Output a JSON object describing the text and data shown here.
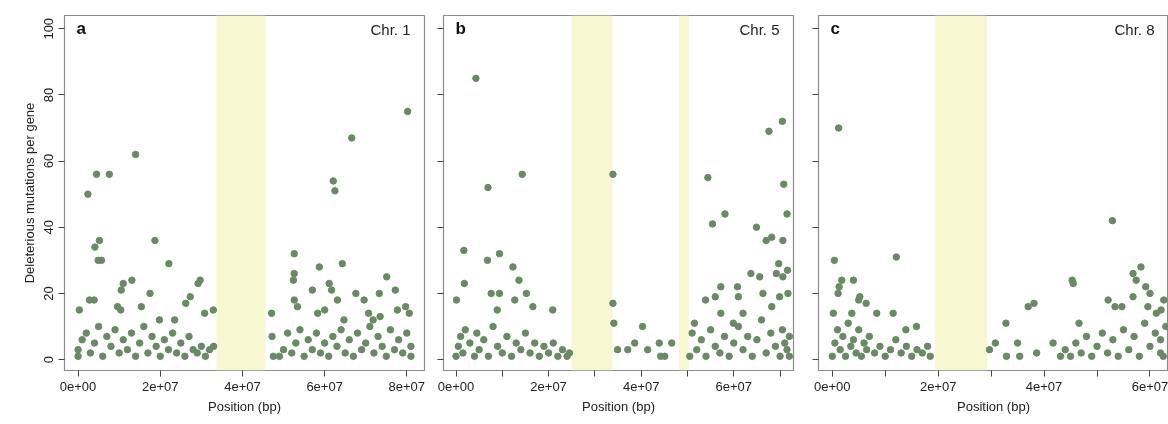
{
  "chart_data": [
    {
      "type": "scatter",
      "title": "a",
      "annotations": [
        "Chr. 1"
      ],
      "xlabel": "Position (bp)",
      "ylabel": "Deleterious mutations per gene",
      "xlim": [
        -3300000.0,
        84300000.0
      ],
      "ylim": [
        -3.3,
        104
      ],
      "xticks": [
        {
          "value": 0,
          "label": "0e+00"
        },
        {
          "value": 20000000.0,
          "label": "2e+07"
        },
        {
          "value": 40000000.0,
          "label": "4e+07"
        },
        {
          "value": 60000000.0,
          "label": "6e+07"
        },
        {
          "value": 80000000.0,
          "label": "8e+07"
        }
      ],
      "yticks": [
        0,
        20,
        40,
        60,
        80,
        100
      ],
      "grid": false,
      "marker": "circle",
      "bands": [
        {
          "axis": "x",
          "from": 33700000.0,
          "to": 45600000.0,
          "color": "#f7f7d2"
        }
      ],
      "series": [
        {
          "color": "#6a8a66",
          "x": [
            2400000.0,
            4500000.0,
            7600000.0,
            14000000.0,
            4100000.0,
            5200000.0,
            4900000.0,
            5700000.0,
            18700000.0,
            22100000.0,
            13100000.0,
            11000000.0,
            10500000.0,
            29700000.0,
            29200000.0,
            17500000.0,
            27300000.0,
            2800000.0,
            3900000.0,
            26200000.0,
            30800000.0,
            32900000.0,
            300000.0,
            9600000.0,
            10400000.0,
            15400000.0,
            19800000.0,
            23500000.0,
            80200000.0,
            66600000.0,
            62100000.0,
            62500000.0,
            52600000.0,
            52600000.0,
            52400000.0,
            58700000.0,
            64300000.0,
            61100000.0,
            75100000.0,
            61700000.0,
            57000000.0,
            67600000.0,
            73300000.0,
            77200000.0,
            69600000.0,
            63100000.0,
            52600000.0,
            79700000.0,
            80600000.0,
            47100000.0,
            70700000.0,
            58300000.0,
            53400000.0,
            60000000.0,
            77700000.0,
            71800000.0,
            73500000.0,
            64700000.0,
            0,
            0,
            1000000.0,
            2000000.0,
            3000000.0,
            4000000.0,
            5000000.0,
            6000000.0,
            7000000.0,
            8000000.0,
            9000000.0,
            10000000.0,
            11000000.0,
            12000000.0,
            13000000.0,
            14000000.0,
            15000000.0,
            16000000.0,
            17000000.0,
            18000000.0,
            19000000.0,
            20000000.0,
            21000000.0,
            22000000.0,
            23000000.0,
            24000000.0,
            25000000.0,
            26000000.0,
            27000000.0,
            28000000.0,
            29000000.0,
            30000000.0,
            31000000.0,
            32000000.0,
            33000000.0,
            47200000.0,
            47500000.0,
            49000000.0,
            50000000.0,
            51000000.0,
            52000000.0,
            53000000.0,
            54000000.0,
            55000000.0,
            56000000.0,
            57000000.0,
            58000000.0,
            59000000.0,
            60000000.0,
            61000000.0,
            62000000.0,
            63000000.0,
            64000000.0,
            65000000.0,
            66000000.0,
            67000000.0,
            68000000.0,
            69000000.0,
            70000000.0,
            71000000.0,
            72000000.0,
            73000000.0,
            74000000.0,
            75000000.0,
            76000000.0,
            77000000.0,
            78000000.0,
            79000000.0,
            80000000.0,
            81000000.0,
            81000000.0
          ],
          "values": [
            50,
            56,
            56,
            62,
            34,
            36,
            30,
            30,
            36,
            29,
            24,
            23,
            21,
            24,
            23,
            20,
            19,
            18,
            18,
            17,
            14,
            15,
            15,
            16,
            15,
            16,
            12,
            12,
            75,
            67,
            54,
            51,
            32,
            26,
            24,
            28,
            29,
            23,
            25,
            21,
            21,
            20,
            20,
            21,
            18,
            18,
            18,
            16,
            14,
            14,
            14,
            14,
            16,
            15,
            15,
            12,
            13,
            12,
            1,
            3,
            6,
            8,
            2,
            5,
            10,
            1,
            7,
            4,
            9,
            2,
            6,
            3,
            8,
            1,
            5,
            10,
            2,
            7,
            4,
            1,
            6,
            3,
            8,
            2,
            5,
            1,
            7,
            3,
            2,
            4,
            1,
            3,
            4,
            7,
            1,
            1,
            3,
            8,
            2,
            5,
            9,
            1,
            6,
            3,
            8,
            2,
            5,
            1,
            7,
            4,
            9,
            2,
            6,
            1,
            8,
            3,
            5,
            10,
            2,
            7,
            4,
            1,
            9,
            3,
            6,
            2,
            8,
            1,
            4
          ]
        }
      ]
    },
    {
      "type": "scatter",
      "title": "b",
      "annotations": [
        "Chr. 5"
      ],
      "xlabel": "Position (bp)",
      "xlim": [
        -2700000.0,
        72900000.0
      ],
      "ylim": [
        -3.3,
        104
      ],
      "tick_labels": "x",
      "xticks": [
        {
          "value": 0,
          "label": "0e+00"
        },
        {
          "value": 10000000.0,
          "label": null
        },
        {
          "value": 20000000.0,
          "label": "2e+07"
        },
        {
          "value": 30000000.0,
          "label": null
        },
        {
          "value": 40000000.0,
          "label": "4e+07"
        },
        {
          "value": 50000000.0,
          "label": null
        },
        {
          "value": 60000000.0,
          "label": "6e+07"
        },
        {
          "value": 70000000.0,
          "label": null
        }
      ],
      "yticks": [
        0,
        20,
        40,
        60,
        80,
        100
      ],
      "grid": false,
      "marker": "circle",
      "bands": [
        {
          "axis": "x",
          "from": 25000000.0,
          "to": 33800000.0,
          "color": "#f7f7d2"
        },
        {
          "axis": "x",
          "from": 48100000.0,
          "to": 50300000.0,
          "color": "#f7f7d2"
        }
      ],
      "series": [
        {
          "color": "#6a8a66",
          "x": [
            4300000.0,
            6900000.0,
            14300000.0,
            33900000.0,
            1700000.0,
            6800000.0,
            9400000.0,
            12300000.0,
            13600000.0,
            1800000.0,
            7600000.0,
            9400000.0,
            15200000.0,
            100000.0,
            12700000.0,
            33900000.0,
            34100000.0,
            40300000.0,
            20900000.0,
            16600000.0,
            8900000.0,
            70500000.0,
            67600000.0,
            70800000.0,
            54400000.0,
            71500000.0,
            58100000.0,
            55400000.0,
            64900000.0,
            68200000.0,
            70600000.0,
            67000000.0,
            69700000.0,
            71600000.0,
            63700000.0,
            69200000.0,
            70600000.0,
            65600000.0,
            57200000.0,
            60800000.0,
            56000000.0,
            61000000.0,
            53900000.0,
            66300000.0,
            71700000.0,
            69900000.0,
            68200000.0,
            51500000.0,
            59900000.0,
            62000000.0,
            57200000.0,
            34900000.0,
            38600000.0,
            41400000.0,
            43900000.0,
            46600000.0,
            44200000.0,
            45100000.0,
            37100000.0,
            0,
            500000.0,
            1000000.0,
            1500000.0,
            2000000.0,
            3000000.0,
            4000000.0,
            4500000.0,
            5000000.0,
            6000000.0,
            7000000.0,
            8000000.0,
            9000000.0,
            10000000.0,
            11000000.0,
            12000000.0,
            13000000.0,
            14000000.0,
            15000000.0,
            16000000.0,
            17000000.0,
            18000000.0,
            19000000.0,
            20000000.0,
            21000000.0,
            22000000.0,
            23000000.0,
            24000000.0,
            24500000.0,
            50500000.0,
            51000000.0,
            52000000.0,
            53000000.0,
            54000000.0,
            55000000.0,
            56000000.0,
            57000000.0,
            58000000.0,
            59000000.0,
            60000000.0,
            61000000.0,
            62000000.0,
            63000000.0,
            64000000.0,
            65000000.0,
            66000000.0,
            67000000.0,
            68000000.0,
            69000000.0,
            70000000.0,
            70500000.0,
            71000000.0,
            71500000.0,
            72000000.0,
            72000000.0
          ],
          "values": [
            85,
            52,
            56,
            56,
            33,
            30,
            32,
            28,
            24,
            23,
            20,
            20,
            20,
            18,
            18,
            17,
            11,
            10,
            15,
            16,
            15,
            72,
            69,
            53,
            55,
            44,
            44,
            41,
            40,
            37,
            36,
            36,
            29,
            27,
            26,
            26,
            25,
            25,
            22,
            22,
            19,
            19,
            18,
            20,
            20,
            19,
            16,
            11,
            11,
            14,
            14,
            3,
            5,
            3,
            5,
            5,
            1,
            1,
            3,
            1,
            4,
            7,
            2,
            9,
            5,
            1,
            8,
            3,
            6,
            1,
            10,
            4,
            2,
            7,
            1,
            5,
            3,
            8,
            2,
            5,
            1,
            4,
            2,
            5,
            1,
            3,
            1,
            2,
            1,
            8,
            3,
            6,
            1,
            9,
            4,
            2,
            7,
            1,
            5,
            10,
            3,
            7,
            1,
            6,
            12,
            2,
            8,
            4,
            1,
            9,
            5,
            3,
            7,
            1
          ]
        }
      ]
    },
    {
      "type": "scatter",
      "title": "c",
      "annotations": [
        "Chr. 8"
      ],
      "xlabel": "Position (bp)",
      "xlim": [
        -2600000.0,
        63500000.0
      ],
      "ylim": [
        -3.3,
        104
      ],
      "tick_labels": "x",
      "xticks": [
        {
          "value": 0,
          "label": "0e+00"
        },
        {
          "value": 10000000.0,
          "label": null
        },
        {
          "value": 20000000.0,
          "label": "2e+07"
        },
        {
          "value": 30000000.0,
          "label": null
        },
        {
          "value": 40000000.0,
          "label": "4e+07"
        },
        {
          "value": 50000000.0,
          "label": null
        },
        {
          "value": 60000000.0,
          "label": "6e+07"
        }
      ],
      "yticks": [
        0,
        20,
        40,
        60,
        80,
        100
      ],
      "grid": false,
      "marker": "circle",
      "bands": [
        {
          "axis": "x",
          "from": 19400000.0,
          "to": 29200000.0,
          "color": "#f7f7d2"
        }
      ],
      "series": [
        {
          "color": "#6a8a66",
          "x": [
            1200000.0,
            400000.0,
            12100000.0,
            52900000.0,
            58300000.0,
            56800000.0,
            57400000.0,
            45300000.0,
            45500000.0,
            1800000.0,
            4000000.0,
            1300000.0,
            1100000.0,
            5200000.0,
            5000000.0,
            6400000.0,
            37000000.0,
            38100000.0,
            52100000.0,
            56800000.0,
            59200000.0,
            60000000.0,
            62600000.0,
            53400000.0,
            54700000.0,
            59600000.0,
            3700000.0,
            8400000.0,
            200000.0,
            11500000.0,
            32800000.0,
            46600000.0,
            13900000.0,
            15900000.0,
            35000000.0,
            30800000.0,
            29700000.0,
            32900000.0,
            35400000.0,
            38600000.0,
            41700000.0,
            43100000.0,
            61200000.0,
            62100000.0,
            0,
            500000.0,
            1000000.0,
            1500000.0,
            2000000.0,
            2500000.0,
            3000000.0,
            3500000.0,
            4000000.0,
            4500000.0,
            5000000.0,
            5500000.0,
            6000000.0,
            6500000.0,
            7000000.0,
            8000000.0,
            9000000.0,
            10000000.0,
            11000000.0,
            12000000.0,
            13000000.0,
            14000000.0,
            15000000.0,
            16000000.0,
            17000000.0,
            18000000.0,
            18500000.0,
            44000000.0,
            45000000.0,
            46000000.0,
            47000000.0,
            48000000.0,
            49000000.0,
            50000000.0,
            51000000.0,
            52000000.0,
            53000000.0,
            54000000.0,
            55000000.0,
            56000000.0,
            57000000.0,
            58000000.0,
            59000000.0,
            60000000.0,
            61000000.0,
            62000000.0,
            62000000.0,
            63000000.0,
            62500000.0
          ],
          "values": [
            70,
            30,
            31,
            42,
            28,
            26,
            24,
            24,
            23,
            24,
            24,
            22,
            20,
            19,
            18,
            17,
            16,
            17,
            18,
            19,
            22,
            20,
            18,
            16,
            16,
            16,
            14,
            14,
            14,
            14,
            11,
            11,
            9,
            10,
            5,
            5,
            3,
            1,
            1,
            2,
            5,
            1,
            14,
            15,
            1,
            5,
            9,
            3,
            7,
            1,
            11,
            4,
            6,
            2,
            9,
            1,
            5,
            3,
            7,
            2,
            4,
            1,
            3,
            6,
            2,
            4,
            1,
            3,
            2,
            4,
            1,
            3,
            1,
            5,
            2,
            7,
            1,
            4,
            8,
            2,
            6,
            1,
            9,
            3,
            7,
            1,
            11,
            4,
            8,
            2,
            6,
            10,
            1
          ]
        }
      ]
    }
  ]
}
